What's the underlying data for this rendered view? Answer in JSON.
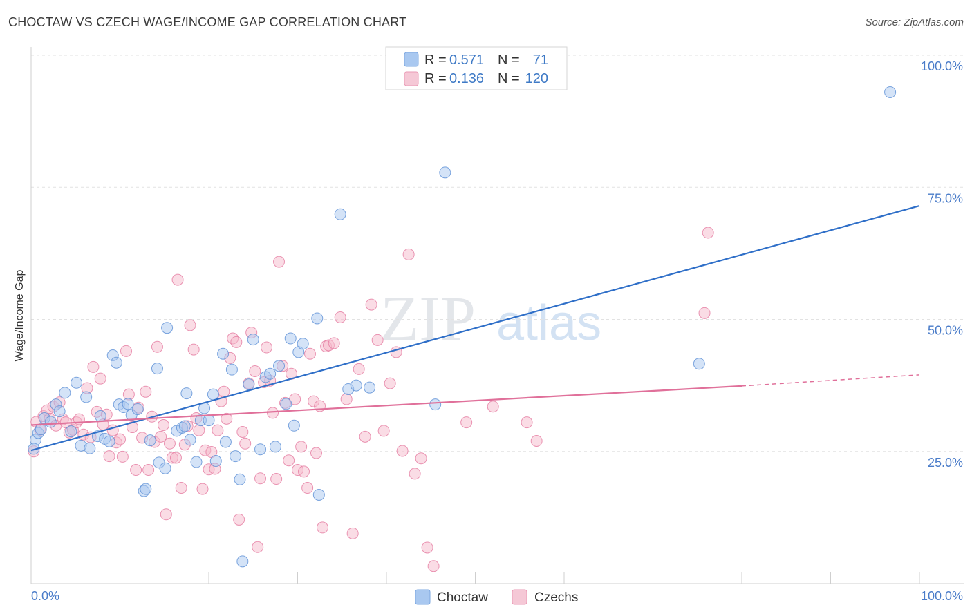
{
  "header": {
    "title": "CHOCTAW VS CZECH WAGE/INCOME GAP CORRELATION CHART",
    "source": "Source: ZipAtlas.com"
  },
  "watermark": {
    "zip": "ZIP",
    "atlas": "atlas"
  },
  "legend_top": {
    "rows": [
      {
        "r_label": "R =",
        "r_value": "0.571",
        "n_label": "N =",
        "n_value": "71",
        "color": "#a9c8f0"
      },
      {
        "r_label": "R =",
        "r_value": "0.136",
        "n_label": "N =",
        "n_value": "120",
        "color": "#f5b9cc"
      }
    ]
  },
  "legend_bottom": {
    "items": [
      {
        "label": "Choctaw",
        "color": "#a9c8f0"
      },
      {
        "label": "Czechs",
        "color": "#f5b9cc"
      }
    ]
  },
  "chart_data": {
    "type": "scatter",
    "title": "CHOCTAW VS CZECH WAGE/INCOME GAP CORRELATION CHART",
    "xlabel": "",
    "ylabel": "Wage/Income Gap",
    "xlim": [
      0,
      100
    ],
    "ylim": [
      0,
      100
    ],
    "x_tick_labels": [
      "0.0%",
      "100.0%"
    ],
    "y_tick_labels": [
      "25.0%",
      "50.0%",
      "75.0%",
      "100.0%"
    ],
    "y_ticks": [
      25,
      50,
      75,
      100
    ],
    "grid": true,
    "legend_position": "top-center",
    "series": [
      {
        "name": "Choctaw",
        "color": "#5b8fd6",
        "fill": "#a9c8f0",
        "trend": {
          "x": [
            0,
            100
          ],
          "y": [
            25.2,
            71.5
          ],
          "color": "#2f6fc8"
        },
        "points": [
          [
            0.5,
            27.2
          ],
          [
            0.8,
            28.5
          ],
          [
            1.5,
            31.3
          ],
          [
            2.2,
            30.6
          ],
          [
            2.8,
            33.9
          ],
          [
            3.2,
            32.6
          ],
          [
            3.8,
            36.1
          ],
          [
            4.5,
            28.8
          ],
          [
            5.1,
            38.0
          ],
          [
            5.6,
            26.1
          ],
          [
            6.2,
            35.3
          ],
          [
            6.6,
            25.6
          ],
          [
            7.5,
            27.9
          ],
          [
            7.8,
            31.7
          ],
          [
            8.3,
            27.4
          ],
          [
            8.8,
            26.9
          ],
          [
            9.2,
            43.2
          ],
          [
            9.6,
            41.8
          ],
          [
            9.9,
            33.9
          ],
          [
            10.4,
            33.4
          ],
          [
            10.9,
            34.0
          ],
          [
            11.3,
            31.9
          ],
          [
            12.0,
            33.0
          ],
          [
            12.7,
            17.5
          ],
          [
            12.9,
            17.9
          ],
          [
            13.4,
            27.1
          ],
          [
            14.2,
            40.7
          ],
          [
            14.4,
            22.9
          ],
          [
            15.1,
            21.8
          ],
          [
            15.3,
            48.4
          ],
          [
            16.4,
            28.9
          ],
          [
            17.0,
            29.5
          ],
          [
            17.3,
            29.8
          ],
          [
            17.5,
            36.0
          ],
          [
            17.9,
            27.2
          ],
          [
            18.6,
            23.0
          ],
          [
            19.1,
            30.9
          ],
          [
            19.5,
            33.2
          ],
          [
            20.0,
            30.9
          ],
          [
            20.5,
            35.8
          ],
          [
            20.8,
            23.2
          ],
          [
            21.6,
            43.5
          ],
          [
            21.9,
            26.8
          ],
          [
            22.6,
            40.5
          ],
          [
            23.0,
            24.1
          ],
          [
            23.5,
            19.7
          ],
          [
            23.8,
            4.2
          ],
          [
            24.5,
            37.7
          ],
          [
            25.0,
            46.2
          ],
          [
            25.8,
            25.4
          ],
          [
            26.4,
            39.1
          ],
          [
            26.9,
            39.7
          ],
          [
            27.5,
            25.9
          ],
          [
            27.9,
            41.2
          ],
          [
            28.7,
            34.0
          ],
          [
            29.2,
            46.4
          ],
          [
            29.6,
            29.9
          ],
          [
            30.1,
            43.8
          ],
          [
            30.6,
            45.4
          ],
          [
            32.2,
            50.2
          ],
          [
            32.4,
            16.8
          ],
          [
            34.8,
            69.9
          ],
          [
            35.7,
            36.8
          ],
          [
            36.6,
            37.5
          ],
          [
            38.1,
            37.1
          ],
          [
            45.5,
            33.9
          ],
          [
            46.6,
            77.8
          ],
          [
            75.2,
            41.6
          ],
          [
            96.7,
            93.0
          ],
          [
            0.3,
            25.5
          ],
          [
            1.1,
            29.2
          ]
        ]
      },
      {
        "name": "Czechs",
        "color": "#e57aa0",
        "fill": "#f5b9cc",
        "trend": {
          "x": [
            0,
            80
          ],
          "y": [
            30.0,
            37.4
          ],
          "color": "#e0709a",
          "dashed_extension": {
            "x": [
              80,
              100
            ],
            "y": [
              37.4,
              39.5
            ]
          }
        },
        "points": [
          [
            0.3,
            25.0
          ],
          [
            0.6,
            30.6
          ],
          [
            1.0,
            29.1
          ],
          [
            1.4,
            31.7
          ],
          [
            1.8,
            32.8
          ],
          [
            2.1,
            31.2
          ],
          [
            2.5,
            33.5
          ],
          [
            2.8,
            29.9
          ],
          [
            3.2,
            34.3
          ],
          [
            3.6,
            31.1
          ],
          [
            3.9,
            30.5
          ],
          [
            4.3,
            28.6
          ],
          [
            4.7,
            29.1
          ],
          [
            5.1,
            30.5
          ],
          [
            5.4,
            31.1
          ],
          [
            5.9,
            28.2
          ],
          [
            6.3,
            37.0
          ],
          [
            6.7,
            27.7
          ],
          [
            7.0,
            41.0
          ],
          [
            7.4,
            32.5
          ],
          [
            7.8,
            38.8
          ],
          [
            8.1,
            30.1
          ],
          [
            8.5,
            32.0
          ],
          [
            8.8,
            24.1
          ],
          [
            9.2,
            29.0
          ],
          [
            9.6,
            26.7
          ],
          [
            10.0,
            27.3
          ],
          [
            10.3,
            24.0
          ],
          [
            10.7,
            44.0
          ],
          [
            11.0,
            35.8
          ],
          [
            11.4,
            29.6
          ],
          [
            11.8,
            21.5
          ],
          [
            12.1,
            33.3
          ],
          [
            12.5,
            27.6
          ],
          [
            12.9,
            36.3
          ],
          [
            13.2,
            21.5
          ],
          [
            13.6,
            31.6
          ],
          [
            13.9,
            26.8
          ],
          [
            14.2,
            44.8
          ],
          [
            14.6,
            27.8
          ],
          [
            14.9,
            30.0
          ],
          [
            15.2,
            13.1
          ],
          [
            15.6,
            26.5
          ],
          [
            15.9,
            23.8
          ],
          [
            16.3,
            23.8
          ],
          [
            16.5,
            57.5
          ],
          [
            16.9,
            18.1
          ],
          [
            17.3,
            26.3
          ],
          [
            17.6,
            29.8
          ],
          [
            17.9,
            48.9
          ],
          [
            18.3,
            44.3
          ],
          [
            18.6,
            31.3
          ],
          [
            18.9,
            29.0
          ],
          [
            19.3,
            17.9
          ],
          [
            19.6,
            25.2
          ],
          [
            20.0,
            21.6
          ],
          [
            20.3,
            24.9
          ],
          [
            20.7,
            21.7
          ],
          [
            21.0,
            29.0
          ],
          [
            21.4,
            34.5
          ],
          [
            21.7,
            36.3
          ],
          [
            22.0,
            31.2
          ],
          [
            22.4,
            42.7
          ],
          [
            22.7,
            46.4
          ],
          [
            23.1,
            45.7
          ],
          [
            23.4,
            12.1
          ],
          [
            23.8,
            28.7
          ],
          [
            24.1,
            26.5
          ],
          [
            24.5,
            37.9
          ],
          [
            24.8,
            47.5
          ],
          [
            25.2,
            40.2
          ],
          [
            25.5,
            6.9
          ],
          [
            25.8,
            19.9
          ],
          [
            26.2,
            38.1
          ],
          [
            26.5,
            44.7
          ],
          [
            26.9,
            38.4
          ],
          [
            27.2,
            32.3
          ],
          [
            27.6,
            19.8
          ],
          [
            27.9,
            60.9
          ],
          [
            28.3,
            41.2
          ],
          [
            28.6,
            34.2
          ],
          [
            29.0,
            23.3
          ],
          [
            29.3,
            39.7
          ],
          [
            29.7,
            34.9
          ],
          [
            30.0,
            21.5
          ],
          [
            30.4,
            25.9
          ],
          [
            30.7,
            21.2
          ],
          [
            31.1,
            18.1
          ],
          [
            31.4,
            43.5
          ],
          [
            31.8,
            34.5
          ],
          [
            32.1,
            24.7
          ],
          [
            32.5,
            33.6
          ],
          [
            32.8,
            10.6
          ],
          [
            33.2,
            44.9
          ],
          [
            33.5,
            45.1
          ],
          [
            34.1,
            45.5
          ],
          [
            34.8,
            50.4
          ],
          [
            35.5,
            34.9
          ],
          [
            36.2,
            9.5
          ],
          [
            36.9,
            40.6
          ],
          [
            37.6,
            27.8
          ],
          [
            38.3,
            52.8
          ],
          [
            39.0,
            46.1
          ],
          [
            39.7,
            28.9
          ],
          [
            40.4,
            37.9
          ],
          [
            41.1,
            43.8
          ],
          [
            41.8,
            25.1
          ],
          [
            42.5,
            62.3
          ],
          [
            43.2,
            20.8
          ],
          [
            43.9,
            23.7
          ],
          [
            44.6,
            6.8
          ],
          [
            45.3,
            3.3
          ],
          [
            49.0,
            30.5
          ],
          [
            52.0,
            33.5
          ],
          [
            55.8,
            30.5
          ],
          [
            56.9,
            27.0
          ],
          [
            76.2,
            66.4
          ],
          [
            75.8,
            51.2
          ]
        ]
      }
    ]
  }
}
